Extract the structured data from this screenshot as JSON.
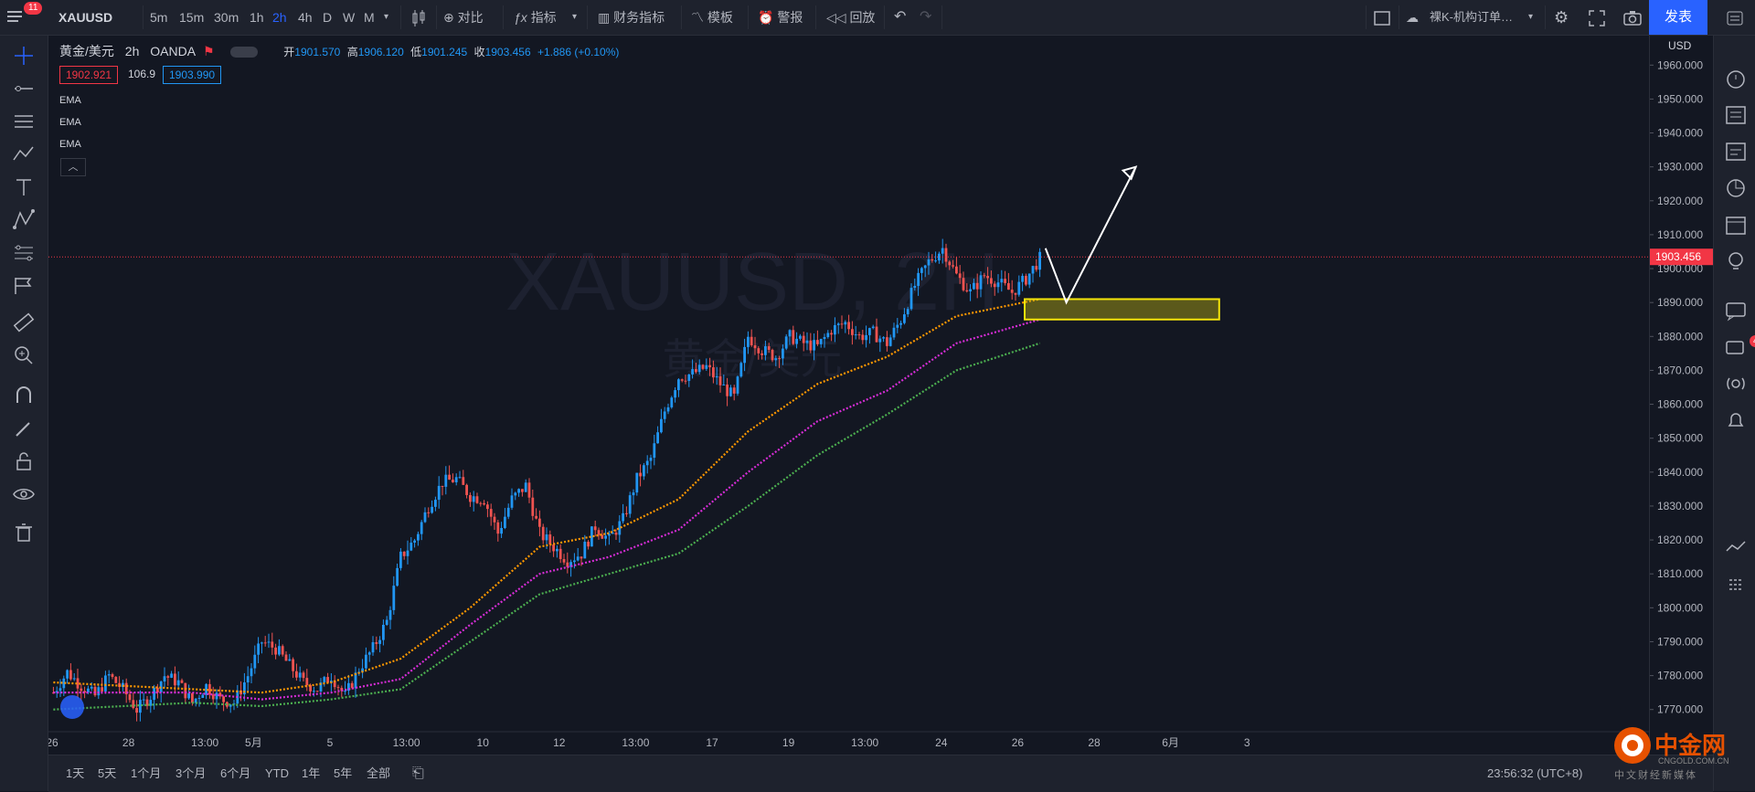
{
  "top": {
    "badge": "11",
    "symbol": "XAUUSD",
    "intervals": [
      "5m",
      "15m",
      "30m",
      "1h",
      "2h",
      "4h",
      "D",
      "W",
      "M"
    ],
    "active_interval": "2h",
    "compare": "对比",
    "indicators": "指标",
    "financials": "财务指标",
    "templates": "模板",
    "alert": "警报",
    "replay": "回放",
    "layout_name": "裸K-机构订单…",
    "publish": "发表"
  },
  "legend": {
    "name": "黄金/美元",
    "interval": "2h",
    "source": "OANDA",
    "o_label": "开",
    "o": "1901.570",
    "h_label": "高",
    "h": "1906.120",
    "l_label": "低",
    "l": "1901.245",
    "c_label": "收",
    "c": "1903.456",
    "change": "+1.886 (+0.10%)",
    "bid": "1902.921",
    "spread": "106.9",
    "ask": "1903.990",
    "ema": [
      "EMA",
      "EMA",
      "EMA"
    ]
  },
  "watermark": {
    "symbol": "XAUUSD, 2H",
    "name": "黄金/美元"
  },
  "chart_data": {
    "type": "candlestick",
    "currency": "USD",
    "current_price": "1903.456",
    "y_ticks": [
      "1960.000",
      "1950.000",
      "1940.000",
      "1930.000",
      "1920.000",
      "1910.000",
      "1900.000",
      "1890.000",
      "1880.000",
      "1870.000",
      "1860.000",
      "1850.000",
      "1840.000",
      "1830.000",
      "1820.000",
      "1810.000",
      "1800.000",
      "1790.000",
      "1780.000",
      "1770.000"
    ],
    "ylim": [
      1764,
      1966
    ],
    "x_ticks": [
      "26",
      "28",
      "13:00",
      "5月",
      "5",
      "13:00",
      "10",
      "12",
      "13:00",
      "17",
      "19",
      "13:00",
      "24",
      "26",
      "28",
      "6月",
      "3"
    ],
    "close_path": [
      [
        0,
        1775
      ],
      [
        4,
        1781
      ],
      [
        8,
        1777
      ],
      [
        12,
        1774
      ],
      [
        16,
        1780
      ],
      [
        20,
        1776
      ],
      [
        24,
        1770
      ],
      [
        28,
        1774
      ],
      [
        32,
        1780
      ],
      [
        36,
        1778
      ],
      [
        40,
        1772
      ],
      [
        44,
        1777
      ],
      [
        48,
        1773
      ],
      [
        52,
        1772
      ],
      [
        56,
        1780
      ],
      [
        60,
        1790
      ],
      [
        64,
        1788
      ],
      [
        68,
        1783
      ],
      [
        72,
        1778
      ],
      [
        76,
        1776
      ],
      [
        80,
        1780
      ],
      [
        84,
        1774
      ],
      [
        88,
        1782
      ],
      [
        92,
        1788
      ],
      [
        96,
        1796
      ],
      [
        100,
        1815
      ],
      [
        104,
        1820
      ],
      [
        108,
        1830
      ],
      [
        112,
        1837
      ],
      [
        116,
        1838
      ],
      [
        120,
        1833
      ],
      [
        124,
        1832
      ],
      [
        128,
        1822
      ],
      [
        132,
        1832
      ],
      [
        136,
        1836
      ],
      [
        140,
        1822
      ],
      [
        144,
        1818
      ],
      [
        148,
        1814
      ],
      [
        152,
        1816
      ],
      [
        156,
        1824
      ],
      [
        160,
        1820
      ],
      [
        164,
        1826
      ],
      [
        168,
        1838
      ],
      [
        172,
        1844
      ],
      [
        176,
        1858
      ],
      [
        180,
        1868
      ],
      [
        184,
        1869
      ],
      [
        188,
        1871
      ],
      [
        192,
        1866
      ],
      [
        196,
        1862
      ],
      [
        200,
        1880
      ],
      [
        204,
        1876
      ],
      [
        208,
        1874
      ],
      [
        212,
        1880
      ],
      [
        216,
        1878
      ],
      [
        220,
        1877
      ],
      [
        224,
        1882
      ],
      [
        228,
        1884
      ],
      [
        232,
        1880
      ],
      [
        236,
        1881
      ],
      [
        240,
        1878
      ],
      [
        244,
        1885
      ],
      [
        248,
        1895
      ],
      [
        252,
        1902
      ],
      [
        256,
        1906
      ],
      [
        260,
        1898
      ],
      [
        264,
        1893
      ],
      [
        268,
        1898
      ],
      [
        272,
        1896
      ],
      [
        276,
        1893
      ],
      [
        280,
        1897
      ],
      [
        284,
        1903
      ]
    ],
    "ema_fast": [
      [
        0,
        1778
      ],
      [
        40,
        1776
      ],
      [
        60,
        1775
      ],
      [
        80,
        1778
      ],
      [
        100,
        1785
      ],
      [
        120,
        1800
      ],
      [
        140,
        1818
      ],
      [
        160,
        1822
      ],
      [
        180,
        1832
      ],
      [
        200,
        1852
      ],
      [
        220,
        1866
      ],
      [
        240,
        1874
      ],
      [
        260,
        1886
      ],
      [
        284,
        1891
      ]
    ],
    "ema_mid": [
      [
        0,
        1775
      ],
      [
        40,
        1775
      ],
      [
        60,
        1773
      ],
      [
        80,
        1775
      ],
      [
        100,
        1779
      ],
      [
        120,
        1795
      ],
      [
        140,
        1810
      ],
      [
        160,
        1815
      ],
      [
        180,
        1823
      ],
      [
        200,
        1840
      ],
      [
        220,
        1855
      ],
      [
        240,
        1864
      ],
      [
        260,
        1878
      ],
      [
        284,
        1885
      ]
    ],
    "ema_slow": [
      [
        0,
        1770
      ],
      [
        40,
        1772
      ],
      [
        60,
        1771
      ],
      [
        80,
        1773
      ],
      [
        100,
        1776
      ],
      [
        120,
        1790
      ],
      [
        140,
        1804
      ],
      [
        160,
        1810
      ],
      [
        180,
        1816
      ],
      [
        200,
        1830
      ],
      [
        220,
        1845
      ],
      [
        240,
        1857
      ],
      [
        260,
        1870
      ],
      [
        284,
        1878
      ]
    ],
    "zone": {
      "from": 1885,
      "to": 1891
    },
    "projection": [
      [
        286,
        1906
      ],
      [
        292,
        1890
      ],
      [
        312,
        1930
      ]
    ]
  },
  "bottom": {
    "ranges": [
      "1天",
      "5天",
      "1个月",
      "3个月",
      "6个月",
      "YTD",
      "1年",
      "5年",
      "全部"
    ],
    "time": "23:56:32 (UTC+8)",
    "logo": "中金网",
    "logo_sub": "CNGOLD.COM.CN",
    "logo_tag": "中文财经新媒体"
  },
  "right_badge": "4",
  "colors": {
    "up": "#2196f3",
    "down": "#ef5350",
    "ema_fast": "#ff9800",
    "ema_mid": "#d62dd6",
    "ema_slow": "#4caf50",
    "zone": "#f5e50a"
  }
}
